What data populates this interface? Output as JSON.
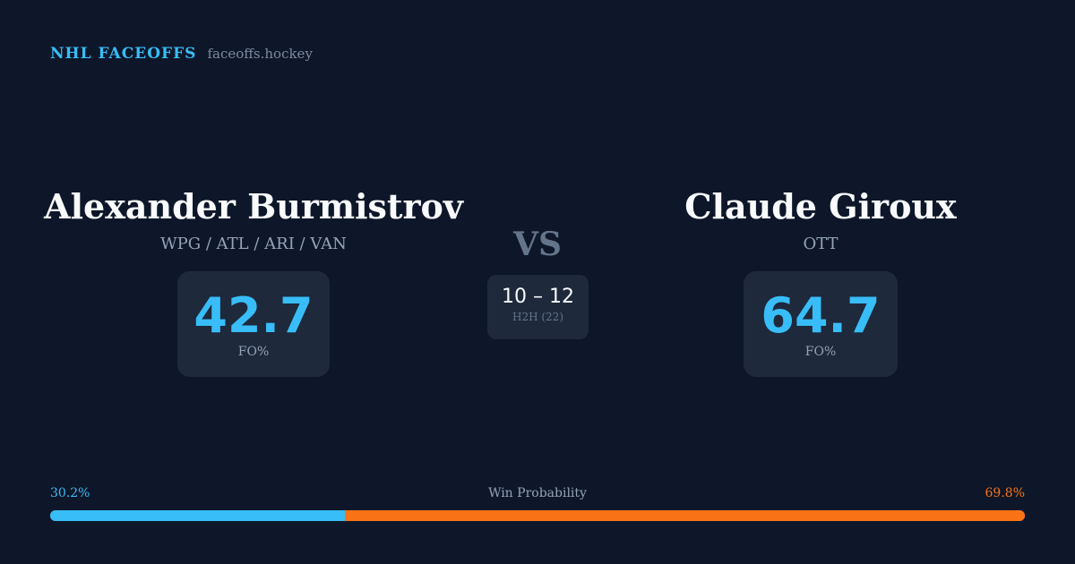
{
  "brand": {
    "title": "NHL FACEOFFS",
    "domain": "faceoffs.hockey"
  },
  "left": {
    "name": "Alexander Burmistrov",
    "teams": "WPG / ATL / ARI / VAN",
    "fo_pct": "42.7",
    "fo_label": "FO%"
  },
  "right": {
    "name": "Claude Giroux",
    "teams": "OTT",
    "fo_pct": "64.7",
    "fo_label": "FO%"
  },
  "vs": "VS",
  "h2h": {
    "score": "10 – 12",
    "label": "H2H (22)"
  },
  "win_probability": {
    "label": "Win Probability",
    "left_text": "30.2%",
    "right_text": "69.8%",
    "left_value": 30.2,
    "right_value": 69.8,
    "left_color": "#38bdf8",
    "right_color": "#f97316"
  }
}
